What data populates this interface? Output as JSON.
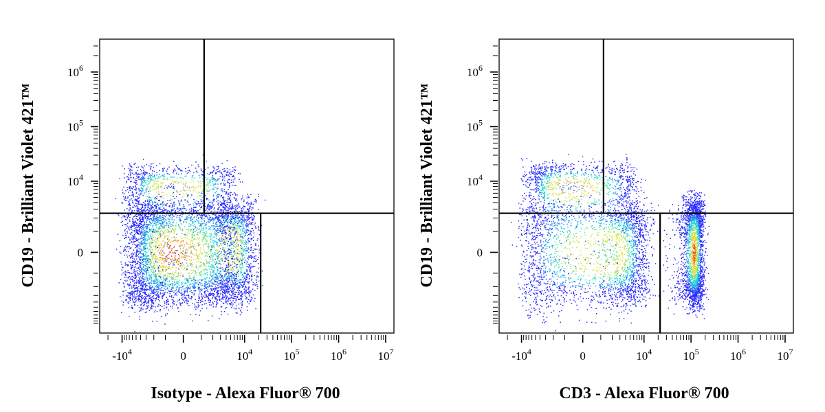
{
  "chart_data": [
    {
      "type": "scatter",
      "subtype": "flow-cytometry-density-dot-plot",
      "xlabel": "Isotype - Alexa Fluor® 700",
      "ylabel": "CD19 - Brilliant Violet 421™",
      "x_scale": "biexponential",
      "y_scale": "biexponential",
      "xlim": [
        -30000,
        15000000
      ],
      "ylim": [
        -15000,
        4000000
      ],
      "x_ticks": [
        {
          "value": -10000,
          "base": "-10",
          "exp": "4"
        },
        {
          "value": 0,
          "base": "0",
          "exp": ""
        },
        {
          "value": 10000,
          "base": "10",
          "exp": "4"
        },
        {
          "value": 100000,
          "base": "10",
          "exp": "5"
        },
        {
          "value": 1000000,
          "base": "10",
          "exp": "6"
        },
        {
          "value": 10000000,
          "base": "10",
          "exp": "7"
        }
      ],
      "y_ticks": [
        {
          "value": 0,
          "base": "0",
          "exp": ""
        },
        {
          "value": 10000,
          "base": "10",
          "exp": "4"
        },
        {
          "value": 100000,
          "base": "10",
          "exp": "5"
        },
        {
          "value": 1000000,
          "base": "10",
          "exp": "6"
        }
      ],
      "quadrant_gates": {
        "y_threshold": 2500,
        "x_threshold_upper": 1200,
        "x_threshold_lower": 22000
      },
      "populations": [
        {
          "x_center": -500,
          "y_center": 0,
          "x_spread": 3500,
          "y_spread": 2200,
          "weight": 0.56,
          "peak_color": "#e21b0c"
        },
        {
          "x_center": 5000,
          "y_center": 200,
          "x_spread": 6000,
          "y_spread": 2000,
          "weight": 0.26,
          "peak_color": "#22d8c0"
        },
        {
          "x_center": -600,
          "y_center": 8000,
          "x_spread": 3500,
          "y_spread": 6000,
          "weight": 0.16,
          "peak_color": "#2a4cff"
        }
      ],
      "grid": false,
      "legend": "none"
    },
    {
      "type": "scatter",
      "subtype": "flow-cytometry-density-dot-plot",
      "xlabel": "CD3 - Alexa Fluor® 700",
      "ylabel": "CD19 - Brilliant Violet 421™",
      "x_scale": "biexponential",
      "y_scale": "biexponential",
      "xlim": [
        -30000,
        15000000
      ],
      "ylim": [
        -15000,
        4000000
      ],
      "x_ticks": [
        {
          "value": -10000,
          "base": "-10",
          "exp": "4"
        },
        {
          "value": 0,
          "base": "0",
          "exp": ""
        },
        {
          "value": 10000,
          "base": "10",
          "exp": "4"
        },
        {
          "value": 100000,
          "base": "10",
          "exp": "5"
        },
        {
          "value": 1000000,
          "base": "10",
          "exp": "6"
        },
        {
          "value": 10000000,
          "base": "10",
          "exp": "7"
        }
      ],
      "y_ticks": [
        {
          "value": 0,
          "base": "0",
          "exp": ""
        },
        {
          "value": 10000,
          "base": "10",
          "exp": "4"
        },
        {
          "value": 100000,
          "base": "10",
          "exp": "5"
        },
        {
          "value": 1000000,
          "base": "10",
          "exp": "6"
        }
      ],
      "quadrant_gates": {
        "y_threshold": 2500,
        "x_threshold_upper": 1200,
        "x_threshold_lower": 22000
      },
      "populations": [
        {
          "x_center": 1500,
          "y_center": 0,
          "x_spread": 5000,
          "y_spread": 2000,
          "weight": 0.4,
          "peak_color": "#22d8a0"
        },
        {
          "x_center": 115000,
          "y_center": 0,
          "x_spread": 35000,
          "y_spread": 2200,
          "weight": 0.4,
          "peak_color": "#e21b0c"
        },
        {
          "x_center": -800,
          "y_center": 8000,
          "x_spread": 3500,
          "y_spread": 7000,
          "weight": 0.2,
          "peak_color": "#2a4cff"
        }
      ],
      "grid": false,
      "legend": "none"
    }
  ]
}
